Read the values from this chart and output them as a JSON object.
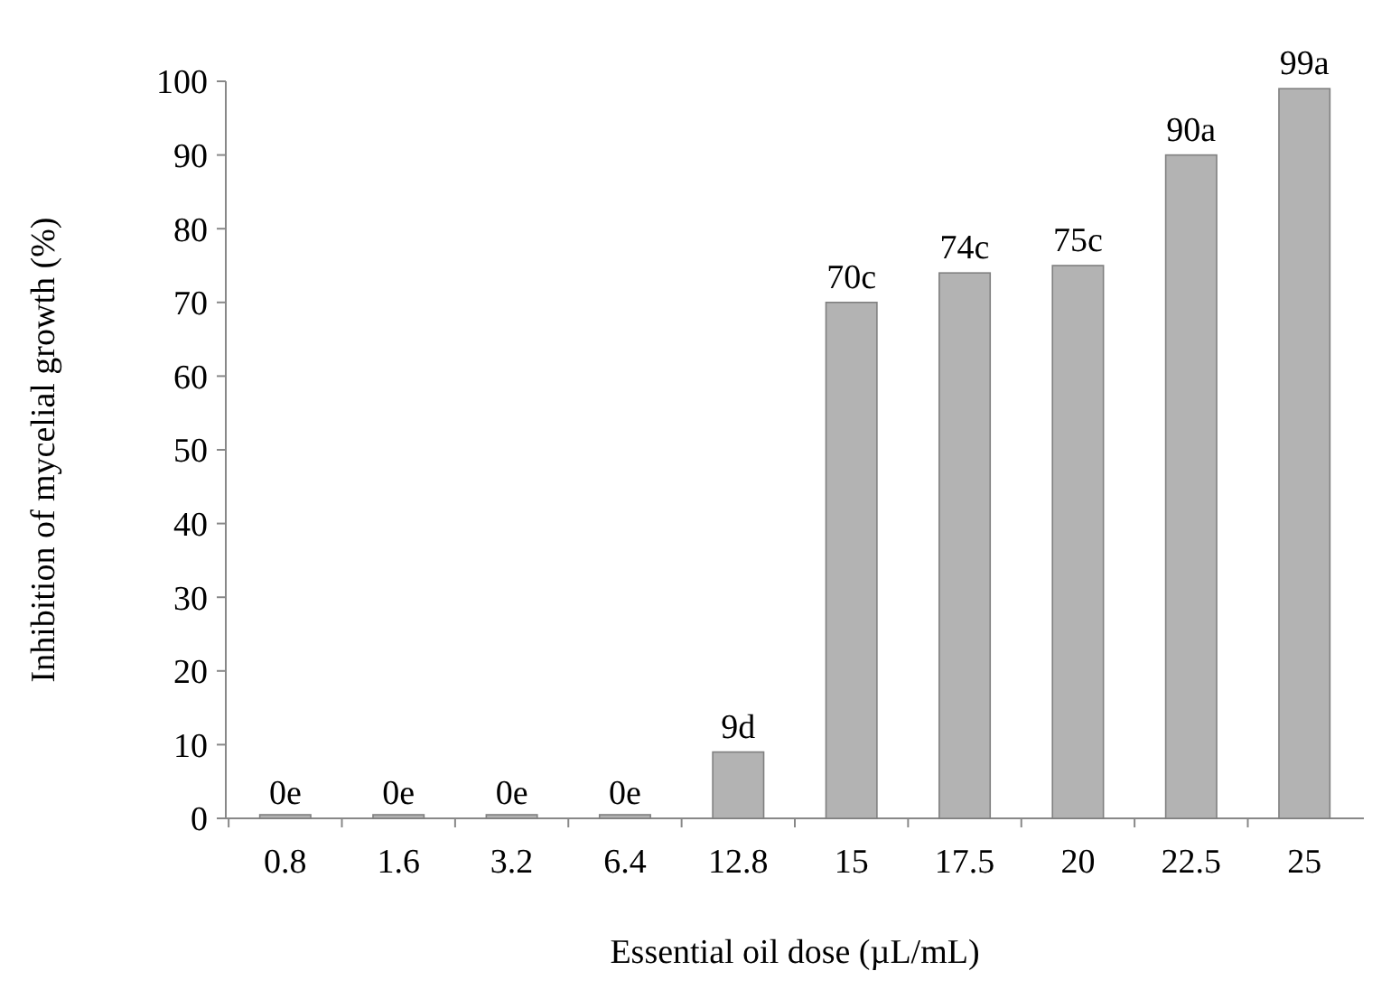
{
  "chart_data": {
    "type": "bar",
    "xlabel": "Essential oil dose (µL/mL)",
    "ylabel": "Inhibition of mycelial growth (%)",
    "categories": [
      "0.8",
      "1.6",
      "3.2",
      "6.4",
      "12.8",
      "15",
      "17.5",
      "20",
      "22.5",
      "25"
    ],
    "values": [
      0,
      0,
      0,
      0,
      9,
      70,
      74,
      75,
      90,
      99
    ],
    "value_labels": [
      "0e",
      "0e",
      "0e",
      "0e",
      "9d",
      "70c",
      "74c",
      "75c",
      "90a",
      "99a"
    ],
    "color": "#b3b3b3",
    "ylim": [
      0,
      100
    ],
    "yticks": [
      0,
      10,
      20,
      30,
      40,
      50,
      60,
      70,
      80,
      90,
      100
    ],
    "grid": false
  }
}
